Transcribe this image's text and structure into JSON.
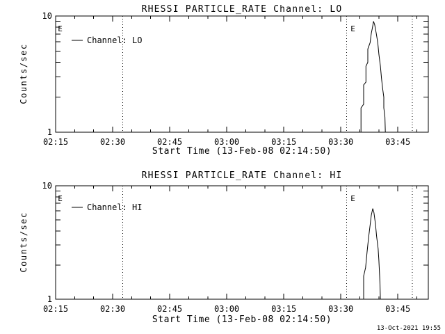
{
  "window": {
    "background": "#ffffff",
    "foreground": "#000000",
    "footer_timestamp": "13-Oct-2021 19:55"
  },
  "chart_data": [
    {
      "type": "line",
      "title": "RHESSI PARTICLE_RATE Channel: LO",
      "xlabel": "Start Time (13-Feb-08 02:14:50)",
      "ylabel": "Counts/sec",
      "legend": "Channel: LO",
      "yscale": "log",
      "ylim": [
        1,
        10
      ],
      "yticks": [
        {
          "v": 1,
          "label": "1"
        },
        {
          "v": 10,
          "label": "10"
        }
      ],
      "yminor": [
        2,
        3,
        4,
        5,
        6,
        7,
        8,
        9
      ],
      "x_axis_minutes_after_0215": [
        0,
        98
      ],
      "xticks": [
        {
          "m": 0,
          "label": "02:15"
        },
        {
          "m": 15,
          "label": "02:30"
        },
        {
          "m": 30,
          "label": "02:45"
        },
        {
          "m": 45,
          "label": "03:00"
        },
        {
          "m": 60,
          "label": "03:15"
        },
        {
          "m": 75,
          "label": "03:30"
        },
        {
          "m": 90,
          "label": "03:45"
        }
      ],
      "xminor_step_minutes": 5,
      "grid": "off",
      "legend_position": "upper-left-inside",
      "eclipse_dotted_lines_minutes": [
        17.6,
        76.5,
        93.8
      ],
      "eclipse_markers": [
        {
          "label": "E",
          "m": 0.4
        },
        {
          "label": "E",
          "m": 77.4
        }
      ],
      "series": [
        {
          "name": "Channel: LO",
          "points_minutes_counts": [
            [
              80.3,
              1.0
            ],
            [
              80.3,
              1.62
            ],
            [
              81.0,
              1.74
            ],
            [
              81.0,
              2.55
            ],
            [
              81.6,
              2.7
            ],
            [
              81.6,
              3.7
            ],
            [
              82.1,
              4.0
            ],
            [
              82.1,
              5.2
            ],
            [
              82.7,
              5.9
            ],
            [
              83.0,
              7.1
            ],
            [
              83.3,
              7.9
            ],
            [
              83.6,
              9.0
            ],
            [
              83.9,
              8.4
            ],
            [
              84.3,
              7.1
            ],
            [
              84.7,
              5.9
            ],
            [
              85.0,
              4.7
            ],
            [
              85.4,
              3.7
            ],
            [
              85.7,
              2.9
            ],
            [
              86.0,
              2.35
            ],
            [
              86.3,
              2.0
            ],
            [
              86.3,
              1.62
            ],
            [
              86.6,
              1.35
            ],
            [
              86.7,
              1.0
            ]
          ]
        }
      ]
    },
    {
      "type": "line",
      "title": "RHESSI PARTICLE_RATE Channel: HI",
      "xlabel": "Start Time (13-Feb-08 02:14:50)",
      "ylabel": "Counts/sec",
      "legend": "Channel: HI",
      "yscale": "log",
      "ylim": [
        1,
        10
      ],
      "yticks": [
        {
          "v": 1,
          "label": "1"
        },
        {
          "v": 10,
          "label": "10"
        }
      ],
      "yminor": [
        2,
        3,
        4,
        5,
        6,
        7,
        8,
        9
      ],
      "x_axis_minutes_after_0215": [
        0,
        98
      ],
      "xticks": [
        {
          "m": 0,
          "label": "02:15"
        },
        {
          "m": 15,
          "label": "02:30"
        },
        {
          "m": 30,
          "label": "02:45"
        },
        {
          "m": 45,
          "label": "03:00"
        },
        {
          "m": 60,
          "label": "03:15"
        },
        {
          "m": 75,
          "label": "03:30"
        },
        {
          "m": 90,
          "label": "03:45"
        }
      ],
      "xminor_step_minutes": 5,
      "grid": "off",
      "legend_position": "upper-left-inside",
      "eclipse_dotted_lines_minutes": [
        17.6,
        76.5,
        93.8
      ],
      "eclipse_markers": [
        {
          "label": "E",
          "m": 0.4
        },
        {
          "label": "E",
          "m": 77.4
        }
      ],
      "series": [
        {
          "name": "Channel: HI",
          "points_minutes_counts": [
            [
              81.0,
              1.0
            ],
            [
              81.0,
              1.6
            ],
            [
              81.5,
              1.9
            ],
            [
              81.9,
              2.6
            ],
            [
              82.3,
              3.5
            ],
            [
              82.7,
              4.5
            ],
            [
              83.0,
              5.5
            ],
            [
              83.4,
              6.3
            ],
            [
              83.7,
              5.8
            ],
            [
              84.1,
              4.6
            ],
            [
              84.4,
              3.6
            ],
            [
              84.8,
              2.8
            ],
            [
              85.0,
              2.2
            ],
            [
              85.2,
              1.6
            ],
            [
              85.3,
              1.35
            ],
            [
              85.4,
              1.0
            ]
          ]
        }
      ]
    }
  ]
}
